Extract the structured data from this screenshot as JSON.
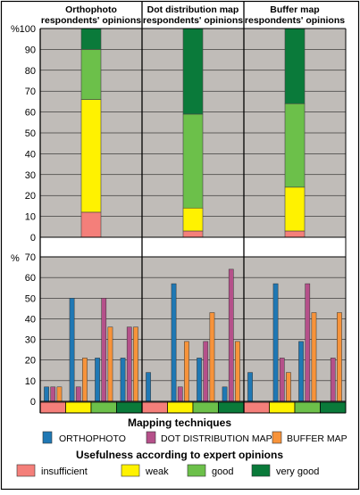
{
  "colors": {
    "insufficient": "#f47f7a",
    "weak": "#fff200",
    "good": "#6cc04a",
    "very_good": "#0a7a3a",
    "orthophoto": "#1f78b4",
    "dot_distribution_map": "#b5508a",
    "buffer_map": "#f7933a",
    "plot_bg": "#c0bcb8"
  },
  "legend": {
    "mapping_title": "Mapping techniques",
    "orthophoto": "ORTHOPHOTO",
    "dot_distribution_map": "DOT DISTRIBUTION MAP",
    "buffer_map": "BUFFER MAP",
    "usefulness_title": "Usefulness according to expert opinions",
    "insufficient": "insufficient",
    "weak": "weak",
    "good": "good",
    "very_good": "very good"
  },
  "chart_data": [
    {
      "type": "bar",
      "stacked": true,
      "ylabel": "%",
      "ylim": [
        0,
        100
      ],
      "yticks": [
        0,
        10,
        20,
        30,
        40,
        50,
        60,
        70,
        80,
        90,
        100
      ],
      "panels": [
        {
          "title_line1": "Orthophoto",
          "title_line2": "respondents' opinions",
          "stack": [
            {
              "name": "insufficient",
              "value": 12
            },
            {
              "name": "weak",
              "value": 54
            },
            {
              "name": "good",
              "value": 24
            },
            {
              "name": "very good",
              "value": 10
            }
          ]
        },
        {
          "title_line1": "Dot distribution map",
          "title_line2": "respondents' opinions",
          "stack": [
            {
              "name": "insufficient",
              "value": 3
            },
            {
              "name": "weak",
              "value": 11
            },
            {
              "name": "good",
              "value": 45
            },
            {
              "name": "very good",
              "value": 41
            }
          ]
        },
        {
          "title_line1": "Buffer map",
          "title_line2": "respondents' opinions",
          "stack": [
            {
              "name": "insufficient",
              "value": 3
            },
            {
              "name": "weak",
              "value": 21
            },
            {
              "name": "good",
              "value": 40
            },
            {
              "name": "very good",
              "value": 36
            }
          ]
        }
      ]
    },
    {
      "type": "bar",
      "ylabel": "%",
      "ylim": [
        0,
        70
      ],
      "yticks": [
        0,
        10,
        20,
        30,
        40,
        50,
        60,
        70
      ],
      "categories": [
        "insufficient",
        "weak",
        "good",
        "very good"
      ],
      "series": [
        "ORTHOPHOTO",
        "DOT DISTRIBUTION MAP",
        "BUFFER MAP"
      ],
      "panels": [
        {
          "title": "Orthophoto",
          "values": [
            [
              7,
              7,
              7
            ],
            [
              50,
              7,
              21
            ],
            [
              21,
              50,
              36
            ],
            [
              21,
              36,
              36
            ]
          ]
        },
        {
          "title": "Dot distribution map",
          "values": [
            [
              14,
              0,
              0
            ],
            [
              57,
              7,
              29
            ],
            [
              21,
              29,
              43
            ],
            [
              7,
              64,
              29
            ]
          ]
        },
        {
          "title": "Buffer map",
          "values": [
            [
              14,
              0,
              0
            ],
            [
              57,
              21,
              14
            ],
            [
              29,
              57,
              43
            ],
            [
              0,
              21,
              43
            ]
          ]
        }
      ]
    }
  ]
}
